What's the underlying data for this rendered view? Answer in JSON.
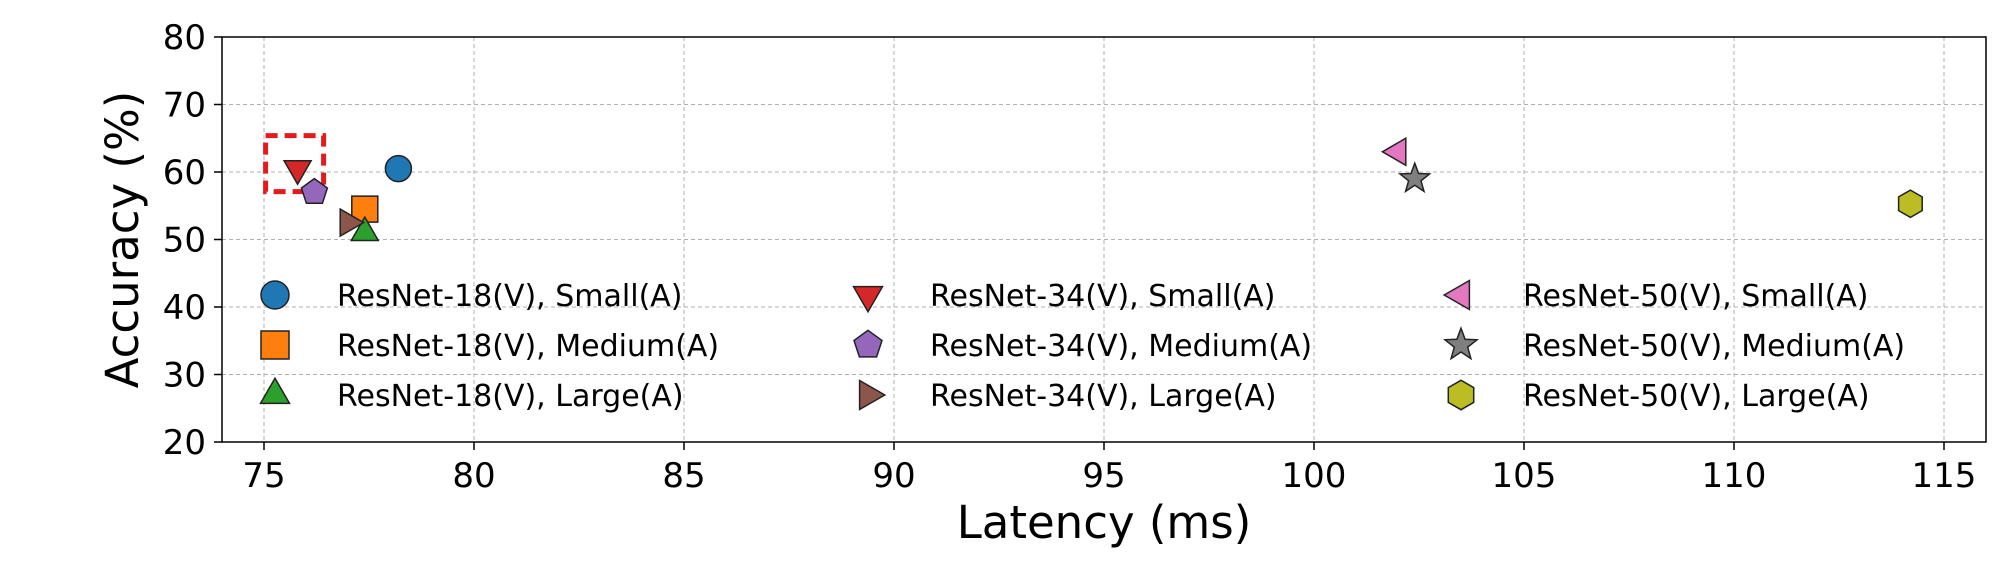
{
  "chart_data": {
    "type": "scatter",
    "title": "",
    "xlabel": "Latency (ms)",
    "ylabel": "Accuracy (%)",
    "xlim": [
      74,
      116
    ],
    "ylim": [
      20,
      80
    ],
    "xticks": [
      75,
      80,
      85,
      90,
      95,
      100,
      105,
      110,
      115
    ],
    "yticks": [
      20,
      30,
      40,
      50,
      60,
      70,
      80
    ],
    "grid": true,
    "legend_position": "lower-center",
    "highlight": {
      "series": "ResNet-34(V), Small(A)",
      "style": "red dashed box"
    },
    "series": [
      {
        "name": "ResNet-18(V), Small(A)",
        "x": 78.2,
        "y": 60.5,
        "marker": "circle",
        "color": "#1f77b4"
      },
      {
        "name": "ResNet-18(V), Medium(A)",
        "x": 77.4,
        "y": 54.5,
        "marker": "square",
        "color": "#ff7f0e"
      },
      {
        "name": "ResNet-18(V), Large(A)",
        "x": 77.4,
        "y": 51.0,
        "marker": "triangle-up",
        "color": "#2ca02c"
      },
      {
        "name": "ResNet-34(V), Small(A)",
        "x": 75.8,
        "y": 60.5,
        "marker": "triangle-down",
        "color": "#d62728"
      },
      {
        "name": "ResNet-34(V), Medium(A)",
        "x": 76.2,
        "y": 57.0,
        "marker": "pentagon",
        "color": "#9467bd"
      },
      {
        "name": "ResNet-34(V), Large(A)",
        "x": 77.0,
        "y": 52.5,
        "marker": "triangle-right",
        "color": "#8c564b"
      },
      {
        "name": "ResNet-50(V), Small(A)",
        "x": 102.0,
        "y": 63.0,
        "marker": "triangle-left",
        "color": "#e377c2"
      },
      {
        "name": "ResNet-50(V), Medium(A)",
        "x": 102.4,
        "y": 59.0,
        "marker": "star",
        "color": "#7f7f7f"
      },
      {
        "name": "ResNet-50(V), Large(A)",
        "x": 114.2,
        "y": 55.3,
        "marker": "hexagon",
        "color": "#bcbd22"
      }
    ]
  }
}
